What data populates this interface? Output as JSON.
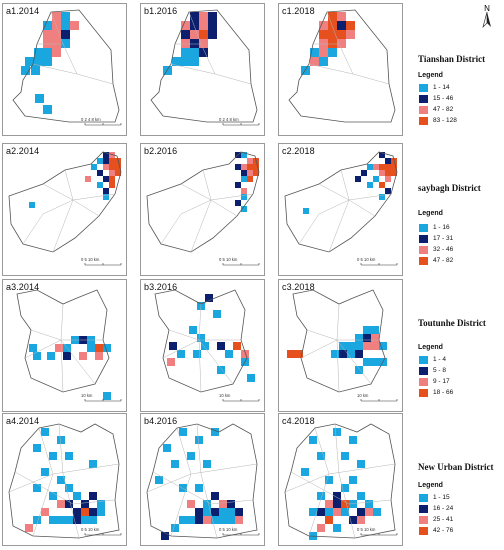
{
  "north_arrow_label": "N",
  "panels": [
    {
      "label": "a1.2014",
      "scalebar": "0   2   4        8 km"
    },
    {
      "label": "b1.2016",
      "scalebar": "0   2   4        8 km"
    },
    {
      "label": "c1.2018",
      "scalebar": ""
    },
    {
      "label": "a2.2014",
      "scalebar": "0        5       10 km"
    },
    {
      "label": "b2.2016",
      "scalebar": "0        5       10 km"
    },
    {
      "label": "c2.2018",
      "scalebar": "0        5       10 km"
    },
    {
      "label": "a3.2014",
      "scalebar": "10 km"
    },
    {
      "label": "b3.2016",
      "scalebar": "10 km"
    },
    {
      "label": "c3.2018",
      "scalebar": "10 km"
    },
    {
      "label": "a4.2014",
      "scalebar": "0        5       10 km"
    },
    {
      "label": "b4.2016",
      "scalebar": "0        5       10 km"
    },
    {
      "label": "c4.2018",
      "scalebar": "0        5       10 km"
    }
  ],
  "legends": [
    {
      "district": "Tianshan District",
      "title": "Legend",
      "entries": [
        {
          "label": "1 - 14",
          "color": "#1aa7e0"
        },
        {
          "label": "15 - 46",
          "color": "#0b1f6e"
        },
        {
          "label": "47 - 82",
          "color": "#f08080"
        },
        {
          "label": "83 - 128",
          "color": "#e5501e"
        }
      ]
    },
    {
      "district": "saybagh District",
      "title": "Legend",
      "entries": [
        {
          "label": "1 - 16",
          "color": "#1aa7e0"
        },
        {
          "label": "17 - 31",
          "color": "#0b1f6e"
        },
        {
          "label": "32 - 46",
          "color": "#f08080"
        },
        {
          "label": "47 - 82",
          "color": "#e5501e"
        }
      ]
    },
    {
      "district": "Toutunhe District",
      "title": "Legend",
      "entries": [
        {
          "label": "1 - 4",
          "color": "#1aa7e0"
        },
        {
          "label": "5 - 8",
          "color": "#0b1f6e"
        },
        {
          "label": "9 - 17",
          "color": "#f08080"
        },
        {
          "label": "18 - 66",
          "color": "#e5501e"
        }
      ]
    },
    {
      "district": "New Urban District",
      "title": "Legend",
      "entries": [
        {
          "label": "1 - 15",
          "color": "#1aa7e0"
        },
        {
          "label": "16 - 24",
          "color": "#0b1f6e"
        },
        {
          "label": "25 - 41",
          "color": "#f08080"
        },
        {
          "label": "42 - 76",
          "color": "#e5501e"
        }
      ]
    }
  ]
}
